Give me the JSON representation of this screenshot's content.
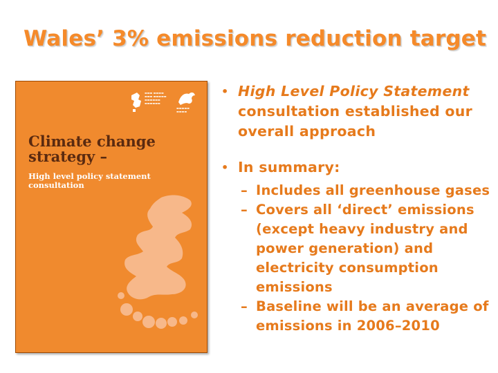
{
  "slide": {
    "title": "Wales’ 3% emissions reduction target"
  },
  "cover": {
    "title_line1": "Climate change",
    "title_line2": "strategy –",
    "subtitle_line1": "High level policy statement",
    "subtitle_line2": "consultation",
    "background_color": "#f08a2e"
  },
  "bullets": {
    "first": {
      "italic_part": "High Level Policy Statement",
      "rest_lines": [
        "consultation established our",
        "overall approach"
      ]
    },
    "second": {
      "label": "In summary:"
    },
    "sub_items": [
      {
        "lines": [
          "Includes all greenhouse gases"
        ]
      },
      {
        "lines": [
          "Covers all ‘direct’ emissions",
          "(except heavy industry and",
          "power generation) and",
          "electricity consumption",
          "emissions"
        ]
      },
      {
        "lines": [
          "Baseline will be an average of",
          "emissions in 2006–2010"
        ]
      }
    ],
    "bullet_symbol": "•",
    "dash_symbol": "–",
    "text_color": "#e67a1c"
  }
}
